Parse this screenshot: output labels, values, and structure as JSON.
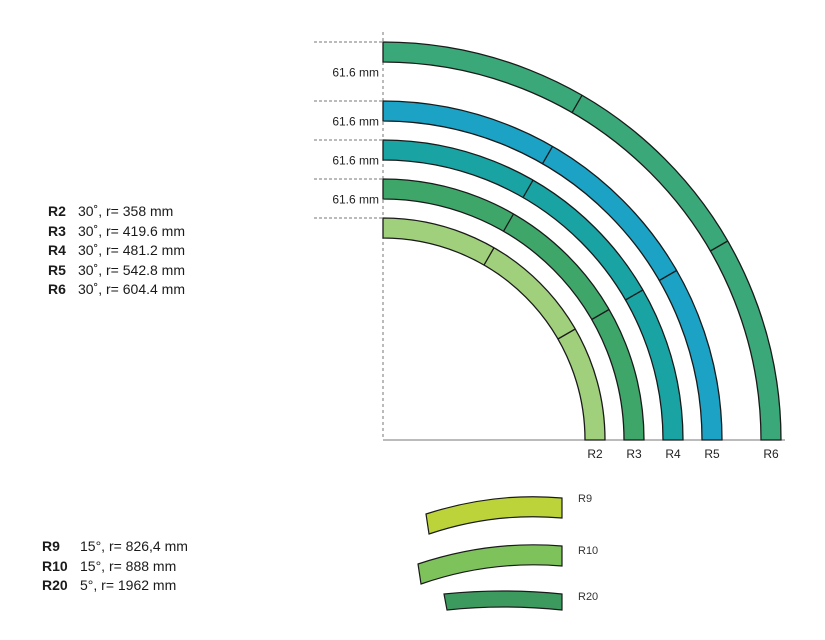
{
  "spacing_labels": [
    "61.6 mm",
    "61.6 mm",
    "61.6 mm",
    "61.6 mm"
  ],
  "tracks": [
    {
      "code": "R2",
      "angle": "30˚,",
      "radius_text": "r= 358 mm",
      "color": "#a1d07c"
    },
    {
      "code": "R3",
      "angle": "30˚,",
      "radius_text": "r= 419.6 mm",
      "color": "#3fa66a"
    },
    {
      "code": "R4",
      "angle": "30˚,",
      "radius_text": "r= 481.2 mm",
      "color": "#19a4a3"
    },
    {
      "code": "R5",
      "angle": "30˚,",
      "radius_text": "r= 542.8 mm",
      "color": "#1ba2c5"
    },
    {
      "code": "R6",
      "angle": "30˚,",
      "radius_text": "r= 604.4 mm",
      "color": "#3aa878"
    }
  ],
  "straight_pieces": [
    {
      "code": "R9",
      "angle": "15°,",
      "radius_text": "r= 826,4 mm",
      "color": "#bcd43a"
    },
    {
      "code": "R10",
      "angle": "15°,",
      "radius_text": " r= 888 mm",
      "color": "#7dc25a"
    },
    {
      "code": "R20",
      "angle": "5°,",
      "radius_text": "r= 1962 mm",
      "color": "#3d9a5f"
    }
  ],
  "colors": {
    "outline": "#1a1a1a",
    "axis": "#777777",
    "dash": "#777777"
  }
}
